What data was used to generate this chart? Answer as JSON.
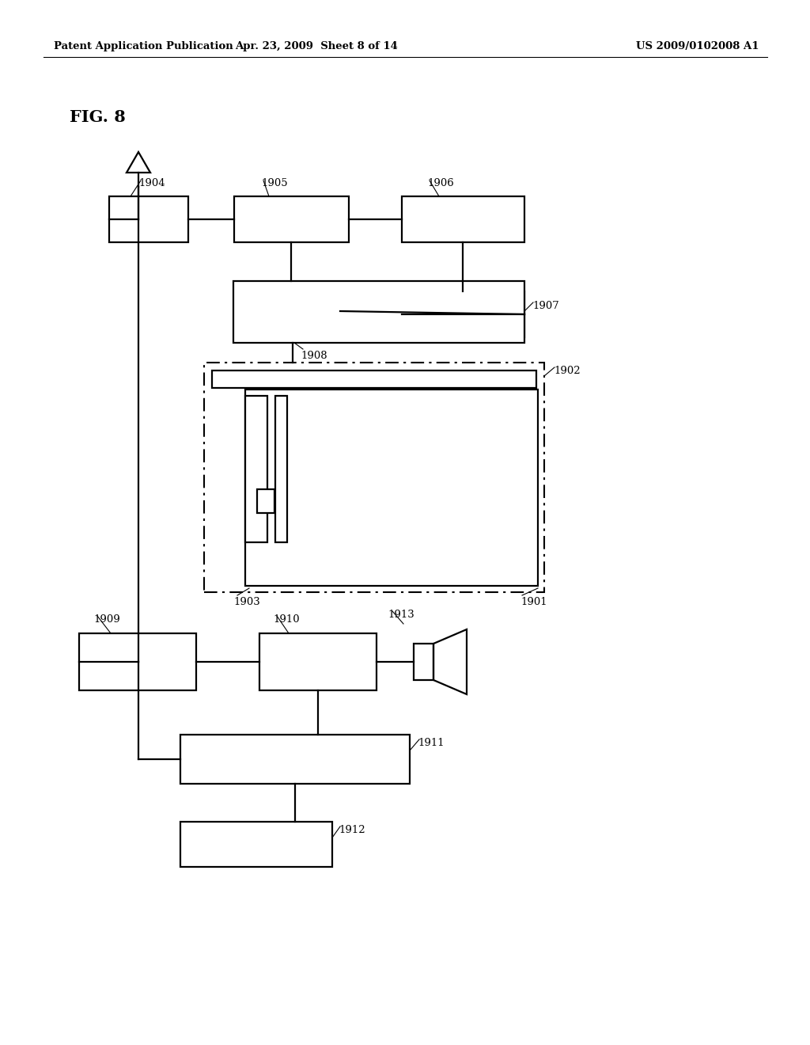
{
  "title_left": "Patent Application Publication",
  "title_mid": "Apr. 23, 2009  Sheet 8 of 14",
  "title_right": "US 2009/0102008 A1",
  "fig_label": "FIG. 8",
  "bg_color": "#ffffff",
  "line_color": "#000000",
  "header_fontsize": 9.5,
  "fig_label_fontsize": 15,
  "label_fontsize": 9.5
}
